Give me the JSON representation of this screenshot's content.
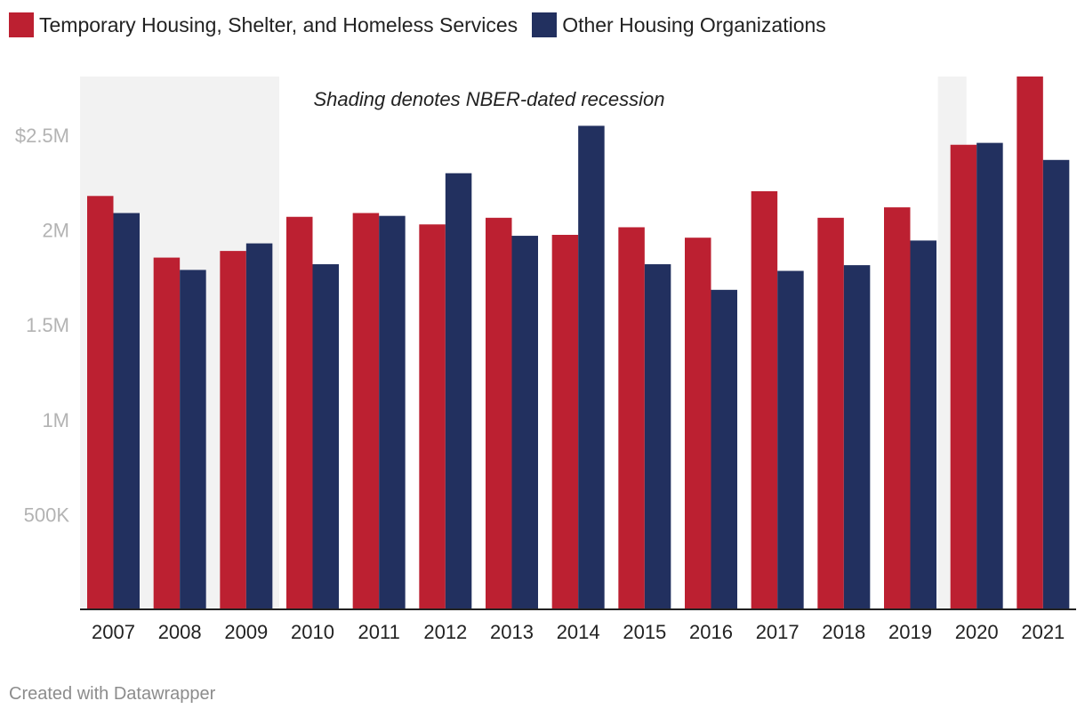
{
  "chart_data": {
    "type": "bar",
    "categories": [
      "2007",
      "2008",
      "2009",
      "2010",
      "2011",
      "2012",
      "2013",
      "2014",
      "2015",
      "2016",
      "2017",
      "2018",
      "2019",
      "2020",
      "2021"
    ],
    "series": [
      {
        "name": "Temporary Housing, Shelter, and Homeless Services",
        "color": "#bc2031",
        "values": [
          2180000,
          1855000,
          1890000,
          2070000,
          2090000,
          2030000,
          2065000,
          1975000,
          2015000,
          1960000,
          2205000,
          2065000,
          2120000,
          2450000,
          2810000
        ]
      },
      {
        "name": "Other Housing Organizations",
        "color": "#22305f",
        "values": [
          2090000,
          1790000,
          1930000,
          1820000,
          2075000,
          2300000,
          1970000,
          2550000,
          1820000,
          1685000,
          1785000,
          1815000,
          1945000,
          2460000,
          2370000
        ]
      }
    ],
    "y_ticks": [
      {
        "value": 500000,
        "label": "500K"
      },
      {
        "value": 1000000,
        "label": "1M"
      },
      {
        "value": 1500000,
        "label": "1.5M"
      },
      {
        "value": 2000000,
        "label": "2M"
      },
      {
        "value": 2500000,
        "label": "$2.5M"
      }
    ],
    "ylim": [
      0,
      2810000
    ],
    "recessions": [
      [
        "2007",
        "2009"
      ],
      [
        "2020",
        "2020"
      ]
    ],
    "annotation": "Shading denotes NBER-dated recession",
    "grid": false,
    "legend_position": "top-left"
  },
  "footer": "Created with Datawrapper"
}
